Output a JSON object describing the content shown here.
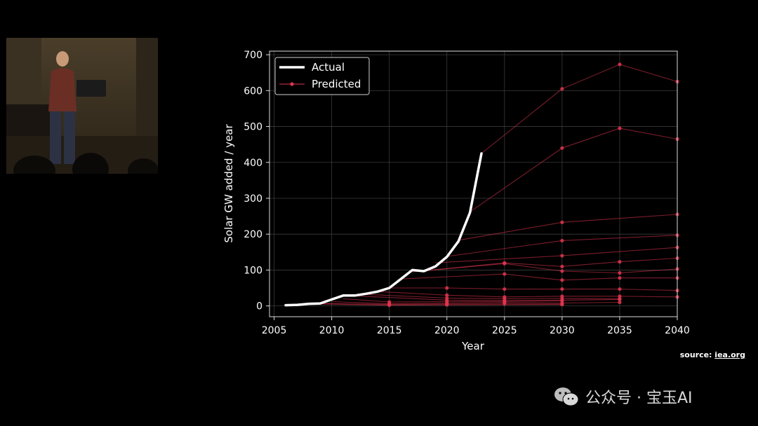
{
  "source": {
    "prefix": "source: ",
    "link": "iea.org"
  },
  "watermark": {
    "text": "公众号 · 宝玉AI",
    "icon": "wechat-icon"
  },
  "colors": {
    "actual": "#ffffff",
    "predicted": "#e0354f",
    "grid": "#3a3a3a",
    "axes": "#dddddd"
  },
  "chart_data": {
    "type": "line",
    "title": "",
    "xlabel": "Year",
    "ylabel": "Solar GW added / year",
    "xlim": [
      2004.6,
      2040
    ],
    "ylim": [
      -30,
      710
    ],
    "xticks": [
      2005,
      2010,
      2015,
      2020,
      2025,
      2030,
      2035,
      2040
    ],
    "yticks": [
      0,
      100,
      200,
      300,
      400,
      500,
      600,
      700
    ],
    "grid": true,
    "legend": {
      "position": "top-left",
      "entries": [
        "Actual",
        "Predicted"
      ]
    },
    "series": [
      {
        "name": "Actual",
        "x": [
          2006,
          2007,
          2008,
          2009,
          2010,
          2011,
          2012,
          2013,
          2014,
          2015,
          2016,
          2017,
          2018,
          2019,
          2020,
          2021,
          2022,
          2023
        ],
        "y": [
          2,
          3,
          6,
          7,
          18,
          29,
          29,
          34,
          40,
          50,
          75,
          100,
          97,
          110,
          137,
          180,
          260,
          425
        ]
      }
    ],
    "predicted_name": "Predicted",
    "predicted_series": [
      {
        "x": [
          2023,
          2030,
          2035,
          2040
        ],
        "y": [
          425,
          605,
          673,
          625
        ]
      },
      {
        "x": [
          2022,
          2030,
          2035,
          2040
        ],
        "y": [
          262,
          440,
          495,
          465
        ]
      },
      {
        "x": [
          2021,
          2030,
          2040
        ],
        "y": [
          183,
          233,
          255
        ]
      },
      {
        "x": [
          2020,
          2030,
          2040
        ],
        "y": [
          138,
          182,
          197
        ]
      },
      {
        "x": [
          2019,
          2030,
          2040
        ],
        "y": [
          120,
          140,
          163
        ]
      },
      {
        "x": [
          2018,
          2025,
          2030,
          2035,
          2040
        ],
        "y": [
          98,
          120,
          110,
          123,
          133
        ]
      },
      {
        "x": [
          2017,
          2025,
          2030,
          2035,
          2040
        ],
        "y": [
          95,
          118,
          97,
          92,
          103
        ]
      },
      {
        "x": [
          2016,
          2025,
          2030,
          2035,
          2040
        ],
        "y": [
          75,
          89,
          72,
          78,
          78
        ]
      },
      {
        "x": [
          2015,
          2020,
          2025,
          2030,
          2035,
          2040
        ],
        "y": [
          50,
          50,
          47,
          47,
          47,
          43
        ]
      },
      {
        "x": [
          2014,
          2020,
          2025,
          2030,
          2035,
          2040
        ],
        "y": [
          40,
          30,
          25,
          27,
          27,
          25
        ]
      },
      {
        "x": [
          2013,
          2020,
          2025,
          2030,
          2035
        ],
        "y": [
          32,
          22,
          20,
          21,
          20
        ]
      },
      {
        "x": [
          2012,
          2020,
          2025,
          2030,
          2035
        ],
        "y": [
          28,
          16,
          15,
          16,
          18
        ]
      },
      {
        "x": [
          2011,
          2015,
          2020,
          2025,
          2030
        ],
        "y": [
          20,
          11,
          12,
          13,
          14
        ]
      },
      {
        "x": [
          2010,
          2015,
          2020,
          2025,
          2030,
          2035
        ],
        "y": [
          12,
          6,
          8,
          10,
          8,
          10
        ]
      },
      {
        "x": [
          2009,
          2015,
          2020,
          2025,
          2030
        ],
        "y": [
          7,
          4,
          5,
          6,
          5
        ]
      },
      {
        "x": [
          2008,
          2015,
          2020,
          2030
        ],
        "y": [
          6,
          2,
          3,
          4
        ]
      }
    ]
  }
}
